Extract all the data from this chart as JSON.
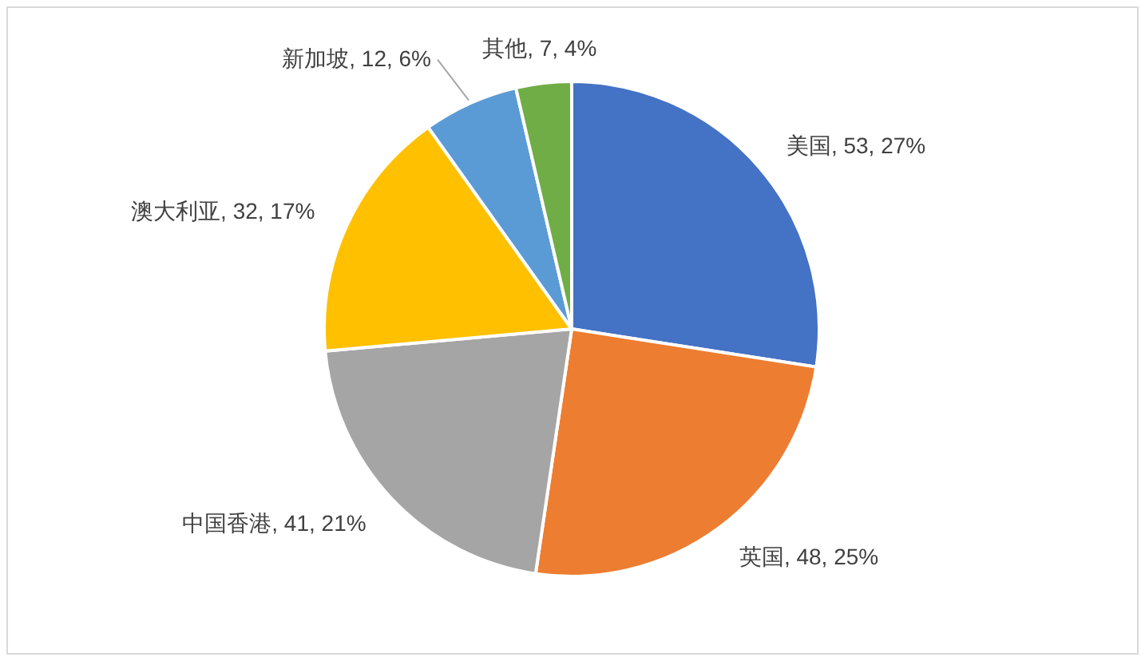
{
  "chart_data": {
    "type": "pie",
    "categories": [
      "美国",
      "英国",
      "中国香港",
      "澳大利亚",
      "新加坡",
      "其他"
    ],
    "values": [
      53,
      48,
      41,
      32,
      12,
      7
    ],
    "colors": [
      "#4472c4",
      "#ed7d31",
      "#a5a5a5",
      "#ffc000",
      "#5b9bd5",
      "#70ad47"
    ],
    "value_labels": [
      "53, 27%",
      "48, 25%",
      "41, 21%",
      "32, 17%",
      "12, 6%",
      "7, 4%"
    ]
  }
}
